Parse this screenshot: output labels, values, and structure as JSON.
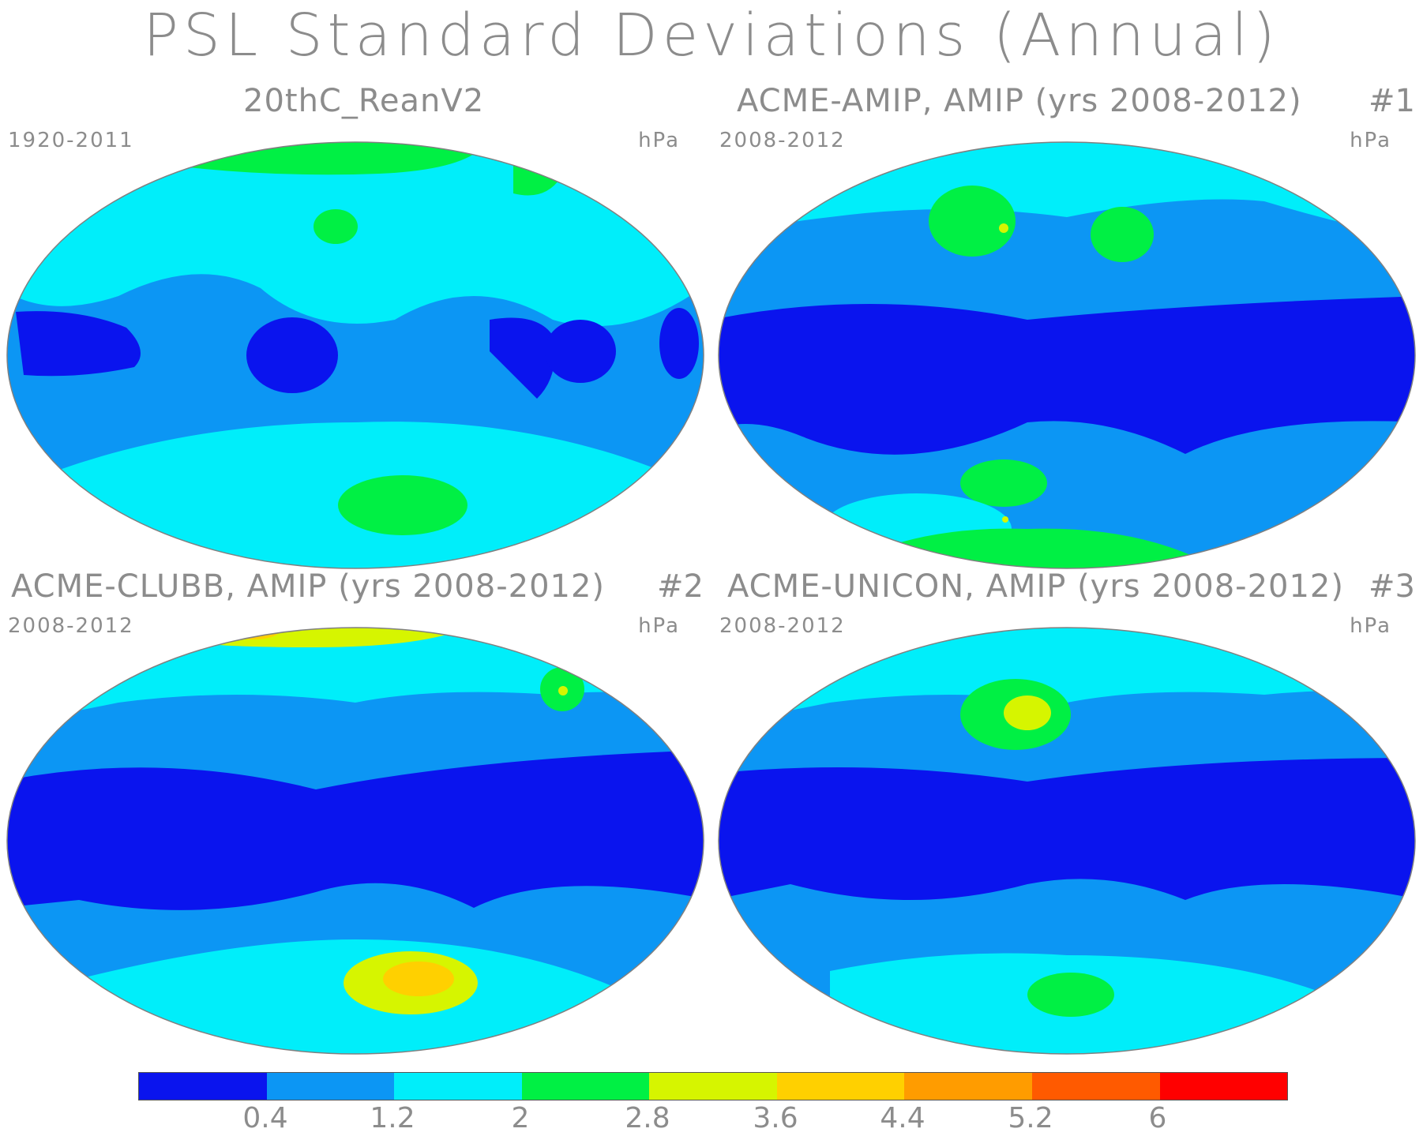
{
  "title": "PSL Standard Deviations (Annual)",
  "colors": {
    "c1": "#0a14ee",
    "c2": "#0c96f4",
    "c3": "#00eefa",
    "c4": "#00f044",
    "c5": "#d6f500",
    "c6": "#ffd000",
    "c7": "#ff9c00",
    "c8": "#ff5a00",
    "c9": "#ff0000",
    "coast": "#808080"
  },
  "panels": [
    {
      "title": "20thC_ReanV2",
      "number": "",
      "years": "1920-2011",
      "units": "hPa"
    },
    {
      "title": "ACME-AMIP, AMIP (yrs 2008-2012)",
      "number": "#1",
      "years": "2008-2012",
      "units": "hPa"
    },
    {
      "title": "ACME-CLUBB, AMIP (yrs 2008-2012)",
      "number": "#2",
      "years": "2008-2012",
      "units": "hPa"
    },
    {
      "title": "ACME-UNICON, AMIP (yrs 2008-2012)",
      "number": "#3",
      "years": "2008-2012",
      "units": "hPa"
    }
  ],
  "colorbar": {
    "colors": [
      "#0a14ee",
      "#0c96f4",
      "#00eefa",
      "#00f044",
      "#d6f500",
      "#ffd000",
      "#ff9c00",
      "#ff5a00",
      "#ff0000"
    ],
    "labels": [
      "0.4",
      "1.2",
      "2",
      "2.8",
      "3.6",
      "4.4",
      "5.2",
      "6"
    ]
  }
}
